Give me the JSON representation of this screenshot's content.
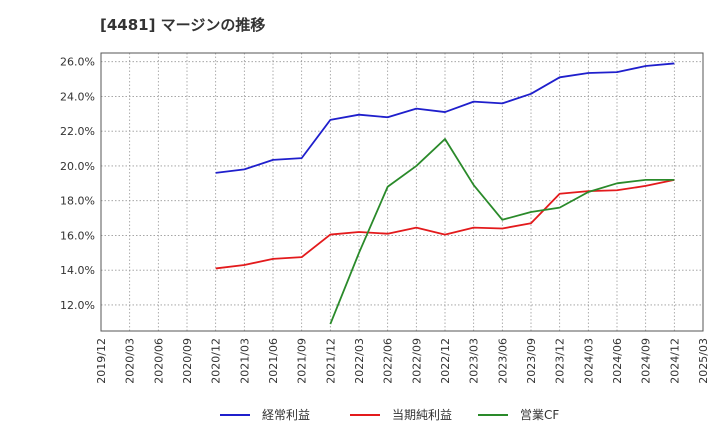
{
  "title": "[4481]  マージンの推移",
  "chart_data": {
    "type": "line",
    "title": "[4481]  マージンの推移",
    "xlabel": "",
    "ylabel": "",
    "x": [
      "2019/12",
      "2020/03",
      "2020/06",
      "2020/09",
      "2020/12",
      "2021/03",
      "2021/06",
      "2021/09",
      "2021/12",
      "2022/03",
      "2022/06",
      "2022/09",
      "2022/12",
      "2023/03",
      "2023/06",
      "2023/09",
      "2023/12",
      "2024/03",
      "2024/06",
      "2024/09",
      "2024/12",
      "2025/03"
    ],
    "ylim": [
      10.5,
      26.5
    ],
    "yticks": [
      12.0,
      14.0,
      16.0,
      18.0,
      20.0,
      22.0,
      24.0,
      26.0
    ],
    "ytick_labels": [
      "12.0%",
      "14.0%",
      "16.0%",
      "18.0%",
      "20.0%",
      "22.0%",
      "24.0%",
      "26.0%"
    ],
    "grid": true,
    "legend_position": "bottom",
    "series": [
      {
        "name": "経常利益",
        "color": "#1f1fcc",
        "points": [
          [
            "2020/12",
            19.6
          ],
          [
            "2021/03",
            19.8
          ],
          [
            "2021/06",
            20.35
          ],
          [
            "2021/09",
            20.45
          ],
          [
            "2021/12",
            22.65
          ],
          [
            "2022/03",
            22.95
          ],
          [
            "2022/06",
            22.8
          ],
          [
            "2022/09",
            23.3
          ],
          [
            "2022/12",
            23.1
          ],
          [
            "2023/03",
            23.7
          ],
          [
            "2023/06",
            23.6
          ],
          [
            "2023/09",
            24.15
          ],
          [
            "2023/12",
            25.1
          ],
          [
            "2024/03",
            25.35
          ],
          [
            "2024/06",
            25.4
          ],
          [
            "2024/09",
            25.75
          ],
          [
            "2024/12",
            25.9
          ]
        ]
      },
      {
        "name": "当期純利益",
        "color": "#e31a1c",
        "points": [
          [
            "2020/12",
            14.1
          ],
          [
            "2021/03",
            14.3
          ],
          [
            "2021/06",
            14.65
          ],
          [
            "2021/09",
            14.75
          ],
          [
            "2021/12",
            16.05
          ],
          [
            "2022/03",
            16.2
          ],
          [
            "2022/06",
            16.1
          ],
          [
            "2022/09",
            16.45
          ],
          [
            "2022/12",
            16.05
          ],
          [
            "2023/03",
            16.45
          ],
          [
            "2023/06",
            16.4
          ],
          [
            "2023/09",
            16.7
          ],
          [
            "2023/12",
            18.4
          ],
          [
            "2024/03",
            18.55
          ],
          [
            "2024/06",
            18.6
          ],
          [
            "2024/09",
            18.85
          ],
          [
            "2024/12",
            19.2
          ]
        ]
      },
      {
        "name": "営業CF",
        "color": "#2a8a2a",
        "points": [
          [
            "2021/12",
            10.9
          ],
          [
            "2022/03",
            15.0
          ],
          [
            "2022/06",
            18.8
          ],
          [
            "2022/09",
            20.0
          ],
          [
            "2022/12",
            21.55
          ],
          [
            "2023/03",
            18.9
          ],
          [
            "2023/06",
            16.9
          ],
          [
            "2023/09",
            17.35
          ],
          [
            "2023/12",
            17.6
          ],
          [
            "2024/03",
            18.5
          ],
          [
            "2024/06",
            19.0
          ],
          [
            "2024/09",
            19.2
          ],
          [
            "2024/12",
            19.2
          ]
        ]
      }
    ]
  }
}
